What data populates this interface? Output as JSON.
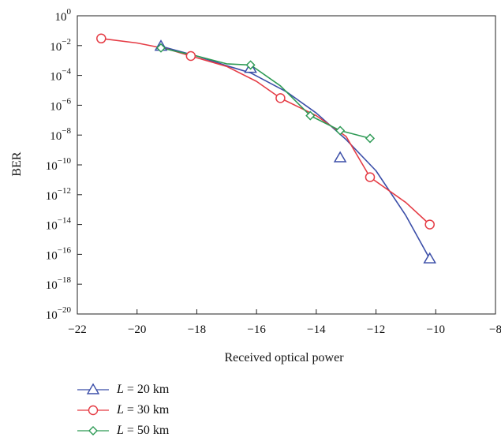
{
  "chart_data": {
    "type": "line",
    "xlabel": "Received optical power",
    "ylabel": "BER",
    "xlim": [
      -22,
      -8
    ],
    "ylim_log10": [
      -20,
      0
    ],
    "y_scale": "log",
    "x_ticks": [
      "−22",
      "−20",
      "−18",
      "−16",
      "−14",
      "−12",
      "−10",
      "−8"
    ],
    "y_ticks": [
      {
        "base": "10",
        "exp": "0"
      },
      {
        "base": "10",
        "exp": "−2"
      },
      {
        "base": "10",
        "exp": "−4"
      },
      {
        "base": "10",
        "exp": "−6"
      },
      {
        "base": "10",
        "exp": "−8"
      },
      {
        "base": "10",
        "exp": "−10"
      },
      {
        "base": "10",
        "exp": "−12"
      },
      {
        "base": "10",
        "exp": "−14"
      },
      {
        "base": "10",
        "exp": "−16"
      },
      {
        "base": "10",
        "exp": "−18"
      },
      {
        "base": "10",
        "exp": "−20"
      }
    ],
    "grid": false,
    "legend_position": "below",
    "series": [
      {
        "legend_var": "L",
        "legend_value": " = 20 km",
        "color": "#3b4ea8",
        "marker": "triangle",
        "points": [
          [
            -19.2,
            0.009
          ],
          [
            -16.2,
            0.0003
          ],
          [
            -13.2,
            3e-10
          ],
          [
            -10.2,
            5e-17
          ]
        ],
        "curve": [
          [
            -19.2,
            0.009
          ],
          [
            -18,
            0.002
          ],
          [
            -17,
            0.00045
          ],
          [
            -16.2,
            0.00015
          ],
          [
            -15,
            8e-06
          ],
          [
            -14,
            3e-07
          ],
          [
            -13,
            5e-09
          ],
          [
            -12,
            4e-11
          ],
          [
            -11,
            4e-14
          ],
          [
            -10.2,
            5e-17
          ]
        ]
      },
      {
        "legend_var": "L",
        "legend_value": " = 30 km",
        "color": "#e53c45",
        "marker": "circle",
        "points": [
          [
            -21.2,
            0.03
          ],
          [
            -18.2,
            0.002
          ],
          [
            -15.2,
            3e-06
          ],
          [
            -12.2,
            1.5e-11
          ],
          [
            -10.2,
            1e-14
          ]
        ],
        "curve": [
          [
            -21.2,
            0.03
          ],
          [
            -20,
            0.015
          ],
          [
            -19,
            0.006
          ],
          [
            -18.2,
            0.002
          ],
          [
            -17,
            0.0004
          ],
          [
            -16,
            4e-05
          ],
          [
            -15.2,
            3e-06
          ],
          [
            -14,
            2e-07
          ],
          [
            -13,
            8e-09
          ],
          [
            -12.2,
            1.5e-11
          ],
          [
            -11,
            3e-13
          ],
          [
            -10.2,
            1e-14
          ]
        ]
      },
      {
        "legend_var": "L",
        "legend_value": " = 50 km",
        "color": "#2e9a55",
        "marker": "diamond",
        "points": [
          [
            -19.2,
            0.007
          ],
          [
            -16.2,
            0.0005
          ],
          [
            -14.2,
            2e-07
          ],
          [
            -13.2,
            2e-08
          ],
          [
            -12.2,
            6e-09
          ]
        ],
        "curve": [
          [
            -19.2,
            0.007
          ],
          [
            -18,
            0.002
          ],
          [
            -17,
            0.0006
          ],
          [
            -16.2,
            0.0005
          ],
          [
            -15.2,
            2e-05
          ],
          [
            -14.2,
            2e-07
          ],
          [
            -13.2,
            2e-08
          ],
          [
            -12.2,
            6e-09
          ]
        ]
      }
    ]
  }
}
